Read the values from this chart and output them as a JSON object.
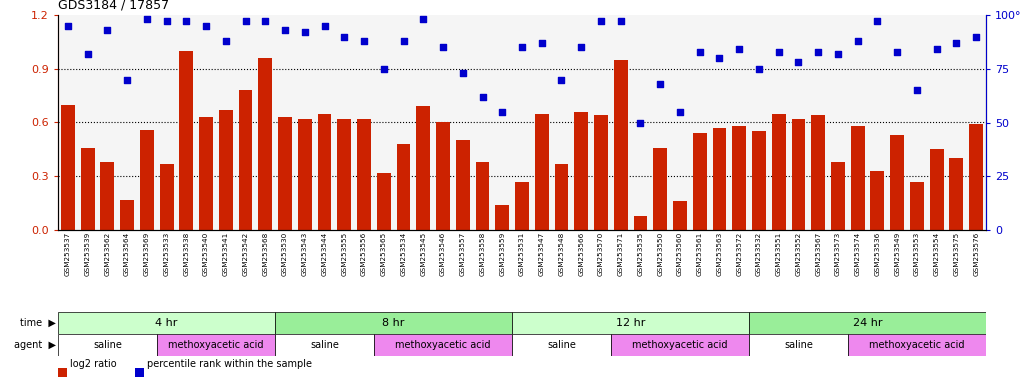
{
  "title": "GDS3184 / 17857",
  "sample_ids": [
    "GSM253537",
    "GSM253539",
    "GSM253562",
    "GSM253564",
    "GSM253569",
    "GSM253533",
    "GSM253538",
    "GSM253540",
    "GSM253541",
    "GSM253542",
    "GSM253568",
    "GSM253530",
    "GSM253543",
    "GSM253544",
    "GSM253555",
    "GSM253556",
    "GSM253565",
    "GSM253534",
    "GSM253545",
    "GSM253546",
    "GSM253557",
    "GSM253558",
    "GSM253559",
    "GSM253531",
    "GSM253547",
    "GSM253548",
    "GSM253566",
    "GSM253570",
    "GSM253571",
    "GSM253535",
    "GSM253550",
    "GSM253560",
    "GSM253561",
    "GSM253563",
    "GSM253572",
    "GSM253532",
    "GSM253551",
    "GSM253552",
    "GSM253567",
    "GSM253573",
    "GSM253574",
    "GSM253536",
    "GSM253549",
    "GSM253553",
    "GSM253554",
    "GSM253575",
    "GSM253576"
  ],
  "log2_ratio": [
    0.7,
    0.46,
    0.38,
    0.17,
    0.56,
    0.37,
    1.0,
    0.63,
    0.67,
    0.78,
    0.96,
    0.63,
    0.62,
    0.65,
    0.62,
    0.62,
    0.32,
    0.48,
    0.69,
    0.6,
    0.5,
    0.38,
    0.14,
    0.27,
    0.65,
    0.37,
    0.66,
    0.64,
    0.95,
    0.08,
    0.46,
    0.16,
    0.54,
    0.57,
    0.58,
    0.55,
    0.65,
    0.62,
    0.64,
    0.38,
    0.58,
    0.33,
    0.53,
    0.27,
    0.45,
    0.4,
    0.59
  ],
  "percentile_rank": [
    95,
    82,
    93,
    70,
    98,
    97,
    97,
    95,
    88,
    97,
    97,
    93,
    92,
    95,
    90,
    88,
    75,
    88,
    98,
    85,
    73,
    62,
    55,
    85,
    87,
    70,
    85,
    97,
    97,
    50,
    68,
    55,
    83,
    80,
    84,
    75,
    83,
    78,
    83,
    82,
    88,
    97,
    83,
    65,
    84,
    87,
    90
  ],
  "bar_color": "#cc2200",
  "dot_color": "#0000cc",
  "background_color": "#ffffff",
  "left_axis_color": "#cc2200",
  "right_axis_color": "#0000cc",
  "ylim_left": [
    0,
    1.2
  ],
  "ylim_right": [
    0,
    100
  ],
  "yticks_left": [
    0,
    0.3,
    0.6,
    0.9,
    1.2
  ],
  "yticks_right": [
    0,
    25,
    50,
    75,
    100
  ],
  "hlines": [
    0.3,
    0.6,
    0.9
  ],
  "time_groups": [
    {
      "label": "4 hr",
      "start": 0,
      "end": 11,
      "color": "#ccffcc"
    },
    {
      "label": "8 hr",
      "start": 11,
      "end": 23,
      "color": "#99ee99"
    },
    {
      "label": "12 hr",
      "start": 23,
      "end": 35,
      "color": "#ccffcc"
    },
    {
      "label": "24 hr",
      "start": 35,
      "end": 47,
      "color": "#99ee99"
    }
  ],
  "agent_groups": [
    {
      "label": "saline",
      "start": 0,
      "end": 5,
      "color": "#ffffff"
    },
    {
      "label": "methoxyacetic acid",
      "start": 5,
      "end": 11,
      "color": "#ee88ee"
    },
    {
      "label": "saline",
      "start": 11,
      "end": 16,
      "color": "#ffffff"
    },
    {
      "label": "methoxyacetic acid",
      "start": 16,
      "end": 23,
      "color": "#ee88ee"
    },
    {
      "label": "saline",
      "start": 23,
      "end": 28,
      "color": "#ffffff"
    },
    {
      "label": "methoxyacetic acid",
      "start": 28,
      "end": 35,
      "color": "#ee88ee"
    },
    {
      "label": "saline",
      "start": 35,
      "end": 40,
      "color": "#ffffff"
    },
    {
      "label": "methoxyacetic acid",
      "start": 40,
      "end": 47,
      "color": "#ee88ee"
    }
  ],
  "legend_items": [
    {
      "label": "log2 ratio",
      "color": "#cc2200"
    },
    {
      "label": "percentile rank within the sample",
      "color": "#0000cc"
    }
  ]
}
